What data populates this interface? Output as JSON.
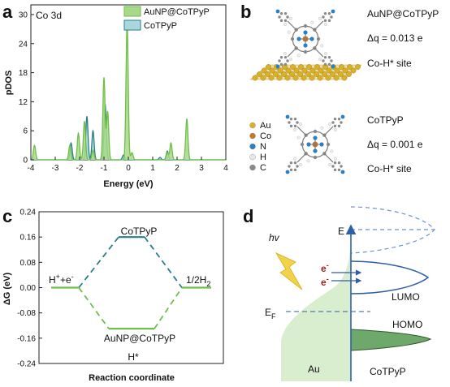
{
  "panels": {
    "a": "a",
    "b": "b",
    "c": "c",
    "d": "d"
  },
  "colors": {
    "green": "#6fbf4a",
    "green_fill": "#a8d98a",
    "teal": "#2a7f86",
    "teal_fill": "#a9d6df",
    "au_fill": "#d9edcf",
    "blue_line": "#2f5fa7",
    "blue_dash": "#6f8fd8",
    "dark_green": "#3d7c34",
    "bolt": "#f2d24b"
  },
  "chart_data": [
    {
      "type": "area",
      "panel": "a",
      "annotation": "Co 3d",
      "xlabel": "Energy (eV)",
      "ylabel": "pDOS",
      "xlim": [
        -4,
        4
      ],
      "ylim": [
        0,
        32
      ],
      "xticks": [
        "-4",
        "-3",
        "-2",
        "-1",
        "0",
        "1",
        "2",
        "3",
        "4"
      ],
      "yticks": [
        "0",
        "6",
        "12",
        "18",
        "24",
        "30"
      ],
      "legend_position": "top-right",
      "series": [
        {
          "name": "AuNP@CoTPyP",
          "color": "#6fbf4a",
          "peaks": [
            {
              "x": -3.85,
              "y": 3.0
            },
            {
              "x": -2.4,
              "y": 3.0
            },
            {
              "x": -2.05,
              "y": 5.5
            },
            {
              "x": -1.8,
              "y": 8.0
            },
            {
              "x": -1.45,
              "y": 2.0
            },
            {
              "x": -1.0,
              "y": 17.0
            },
            {
              "x": -0.85,
              "y": 10.0
            },
            {
              "x": -0.05,
              "y": 28.5
            },
            {
              "x": 0.15,
              "y": 1.5
            },
            {
              "x": 1.6,
              "y": 1.5
            },
            {
              "x": 1.75,
              "y": 3.5
            },
            {
              "x": 2.4,
              "y": 8.5
            }
          ]
        },
        {
          "name": "CoTPyP",
          "color": "#2a7f86",
          "peaks": [
            {
              "x": -2.35,
              "y": 3.5
            },
            {
              "x": -1.7,
              "y": 9.0
            },
            {
              "x": -1.45,
              "y": 6.0
            },
            {
              "x": -0.95,
              "y": 11.5
            },
            {
              "x": -0.2,
              "y": 1.0
            },
            {
              "x": 1.3,
              "y": 0.5
            },
            {
              "x": 1.6,
              "y": 1.8
            }
          ]
        }
      ]
    },
    {
      "type": "line",
      "panel": "c",
      "ylabel": "ΔG (eV)",
      "xlabel": "Reaction coordinate",
      "ylim": [
        -0.24,
        0.24
      ],
      "yticks": [
        "0.24",
        "0.16",
        "0.08",
        "0.00",
        "-0.08",
        "-0.16",
        "-0.24"
      ],
      "levels": [
        {
          "state": "H++e-",
          "x": 0,
          "y": 0.0
        },
        {
          "state": "H*",
          "x": 1,
          "series": "CoTPyP",
          "y": 0.16
        },
        {
          "state": "H*",
          "x": 1,
          "series": "AuNP@CoTPyP",
          "y": -0.13
        },
        {
          "state": "1/2H2",
          "x": 2,
          "y": 0.0
        }
      ],
      "series": [
        {
          "name": "CoTPyP",
          "color": "#2a7f86"
        },
        {
          "name": "AuNP@CoTPyP",
          "color": "#6fbf4a"
        }
      ]
    }
  ],
  "panel_a": {
    "annotation": "Co 3d",
    "legend": [
      "AuNP@CoTPyP",
      "CoTPyP"
    ]
  },
  "panel_b": {
    "top": {
      "name": "AuNP@CoTPyP",
      "dq": "Δq = 0.013 e",
      "site": "Co-H* site"
    },
    "bottom": {
      "name": "CoTPyP",
      "dq": "Δq = 0.001 e",
      "site": "Co-H* site"
    },
    "element_legend": [
      {
        "symbol": "Au",
        "color": "#d8b02a"
      },
      {
        "symbol": "Co",
        "color": "#c9762b"
      },
      {
        "symbol": "N",
        "color": "#2d7fc4"
      },
      {
        "symbol": "H",
        "color": "#e8e8e8"
      },
      {
        "symbol": "C",
        "color": "#8a8a8a"
      }
    ]
  },
  "panel_c": {
    "labels": {
      "left": "H",
      "left_sup1": "+",
      "left_mid": "+e",
      "left_sup2": "-",
      "right": "1/2H",
      "right_sub": "2",
      "top": "CoTPyP",
      "bottom": "AuNP@CoTPyP",
      "hstar": "H*"
    }
  },
  "panel_d": {
    "hv": "hv",
    "E": "E",
    "EF": "E",
    "EF_sub": "F",
    "electron1": "e",
    "electron2": "e",
    "electron_sup": "-",
    "LUMO": "LUMO",
    "HOMO": "HOMO",
    "Au": "Au",
    "CoTPyP": "CoTPyP"
  }
}
